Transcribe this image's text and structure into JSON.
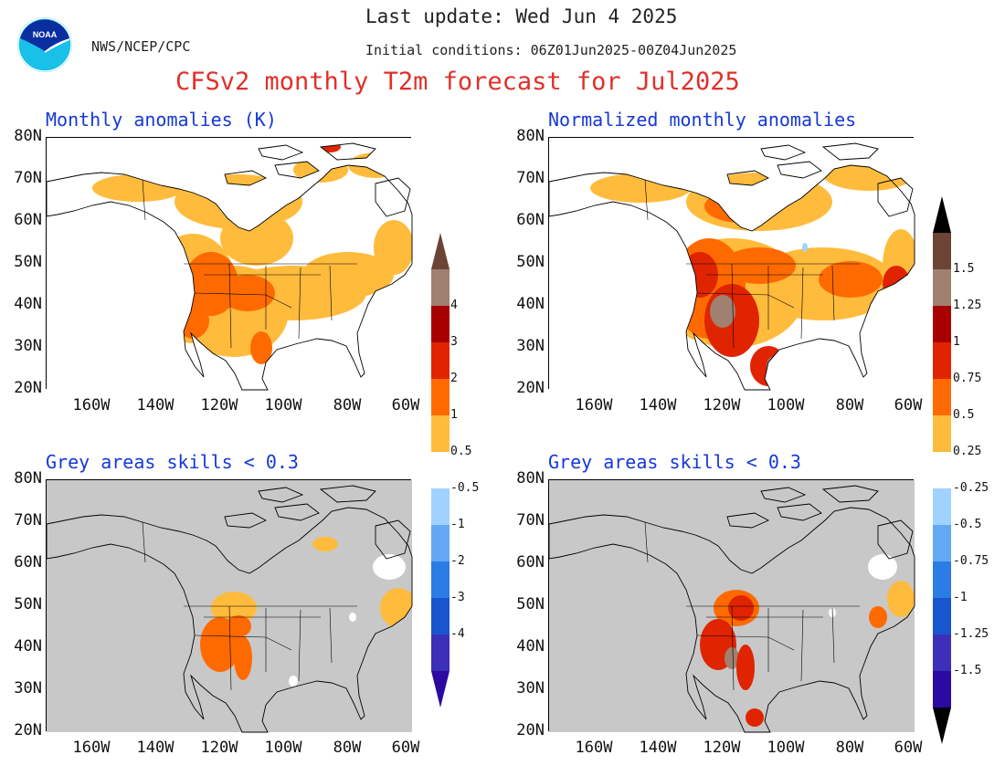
{
  "header": {
    "last_update": "Last update: Wed Jun 4 2025",
    "org": "NWS/NCEP/CPC",
    "initial_conditions": "Initial conditions: 06Z01Jun2025-00Z04Jun2025",
    "title": "CFSv2 monthly T2m forecast for Jul2025",
    "title_color": "#e0302a",
    "logo_text": "NOAA"
  },
  "colors": {
    "warm": [
      "#ffbb3c",
      "#ff6a00",
      "#e02400",
      "#a80000",
      "#a08070",
      "#6b4435"
    ],
    "cool": [
      "#a0d2ff",
      "#63a8f5",
      "#2c7ce6",
      "#1a55d0",
      "#3c30b8",
      "#2a0aa0"
    ],
    "skill_mask": "#c8c8c8",
    "land_outline": "#000000"
  },
  "axes": {
    "lat_labels": [
      "80N",
      "70N",
      "60N",
      "50N",
      "40N",
      "30N",
      "20N"
    ],
    "lon_labels": [
      "160W",
      "140W",
      "120W",
      "100W",
      "80W",
      "60W"
    ]
  },
  "panels": [
    {
      "id": "anom",
      "title": "Monthly anomalies (K)",
      "masked": false
    },
    {
      "id": "norm",
      "title": "Normalized monthly anomalies",
      "masked": false
    },
    {
      "id": "anom-skill",
      "title": "Grey areas skills < 0.3",
      "masked": true
    },
    {
      "id": "norm-skill",
      "title": "Grey areas skills < 0.3",
      "masked": true
    }
  ],
  "colorbars": [
    {
      "id": "anomaly-colorbar",
      "warm_labels": [
        "4",
        "3",
        "2",
        "1",
        "0.5"
      ],
      "cool_labels": [
        "-0.5",
        "-1",
        "-2",
        "-3",
        "-4"
      ]
    },
    {
      "id": "normalized-colorbar",
      "warm_labels": [
        "1.5",
        "1.25",
        "1",
        "0.75",
        "0.5",
        "0.25"
      ],
      "cool_labels": [
        "-0.25",
        "-0.5",
        "-0.75",
        "-1",
        "-1.25",
        "-1.5"
      ]
    }
  ]
}
